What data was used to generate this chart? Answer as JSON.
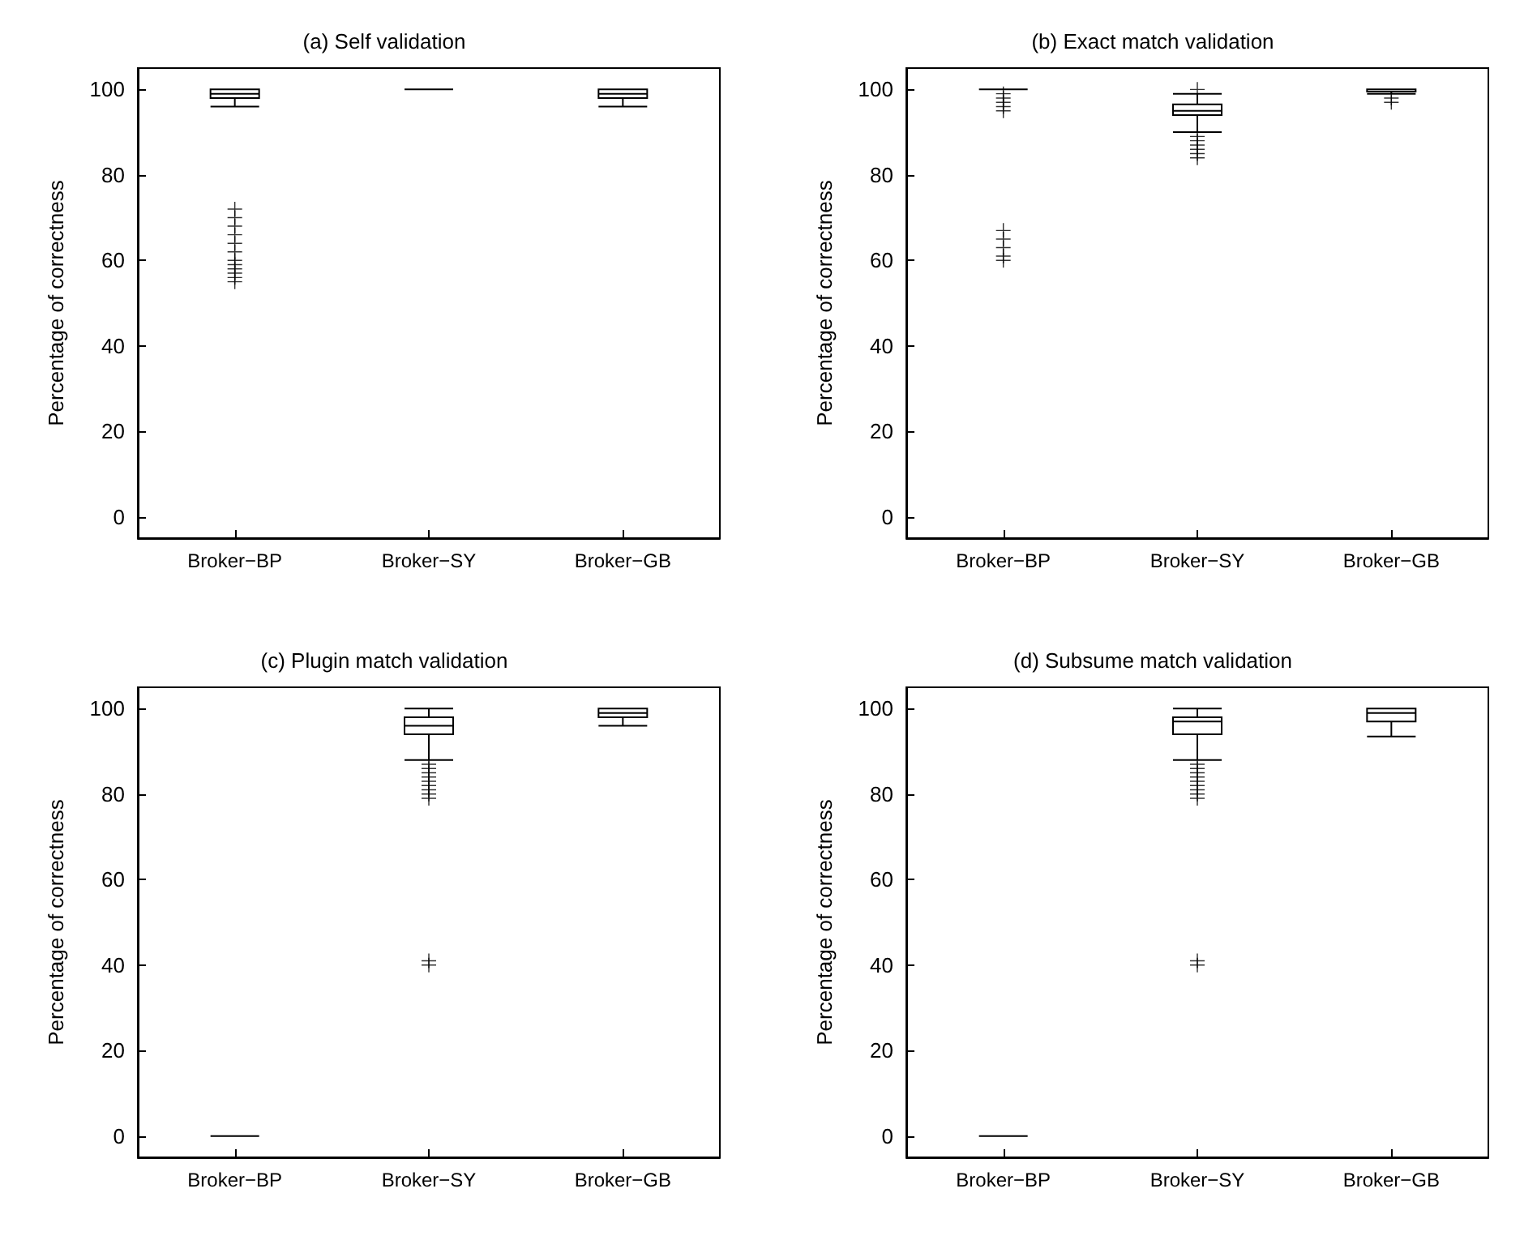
{
  "chart_data": [
    {
      "type": "box",
      "title": "(a) Self validation",
      "ylabel": "Percentage of correctness",
      "categories": [
        "Broker−BP",
        "Broker−SY",
        "Broker−GB"
      ],
      "color": "#000000",
      "marker": "cross",
      "grid": false,
      "ylim": [
        -5,
        105
      ],
      "yticks": [
        0,
        20,
        40,
        60,
        80,
        100
      ],
      "boxes": [
        {
          "low": 96,
          "q1": 98,
          "median": 99,
          "q3": 100,
          "high": 100,
          "outliers": [
            72,
            70,
            68,
            66,
            64,
            62,
            60,
            59,
            58,
            57,
            56,
            55
          ]
        },
        {
          "low": 100,
          "q1": 100,
          "median": 100,
          "q3": 100,
          "high": 100
        },
        {
          "low": 96,
          "q1": 98,
          "median": 99,
          "q3": 100,
          "high": 100
        }
      ]
    },
    {
      "type": "box",
      "title": "(b) Exact match validation",
      "ylabel": "Percentage of correctness",
      "categories": [
        "Broker−BP",
        "Broker−SY",
        "Broker−GB"
      ],
      "color": "#000000",
      "marker": "cross",
      "grid": false,
      "ylim": [
        -5,
        105
      ],
      "yticks": [
        0,
        20,
        40,
        60,
        80,
        100
      ],
      "boxes": [
        {
          "low": 100,
          "q1": 100,
          "median": 100,
          "q3": 100,
          "high": 100,
          "outliers": [
            99,
            98,
            97,
            96,
            95,
            67,
            65,
            63,
            61,
            60
          ]
        },
        {
          "low": 90,
          "q1": 94,
          "median": 95,
          "q3": 96.5,
          "high": 99,
          "outliers": [
            100,
            89,
            88,
            87,
            86,
            85,
            84
          ]
        },
        {
          "low": 99,
          "q1": 99.5,
          "median": 100,
          "q3": 100,
          "high": 100,
          "outliers": [
            98,
            97
          ]
        }
      ]
    },
    {
      "type": "box",
      "title": "(c) Plugin match validation",
      "ylabel": "Percentage of correctness",
      "categories": [
        "Broker−BP",
        "Broker−SY",
        "Broker−GB"
      ],
      "color": "#000000",
      "marker": "cross",
      "grid": false,
      "ylim": [
        -5,
        105
      ],
      "yticks": [
        0,
        20,
        40,
        60,
        80,
        100
      ],
      "boxes": [
        {
          "low": 0,
          "q1": 0,
          "median": 0,
          "q3": 0,
          "high": 0
        },
        {
          "low": 88,
          "q1": 94,
          "median": 96,
          "q3": 98,
          "high": 100,
          "outliers": [
            87,
            86,
            85,
            84,
            83,
            82,
            81,
            80,
            79,
            41,
            40
          ]
        },
        {
          "low": 96,
          "q1": 98,
          "median": 99,
          "q3": 100,
          "high": 100
        }
      ]
    },
    {
      "type": "box",
      "title": "(d) Subsume match validation",
      "ylabel": "Percentage of correctness",
      "categories": [
        "Broker−BP",
        "Broker−SY",
        "Broker−GB"
      ],
      "color": "#000000",
      "marker": "cross",
      "grid": false,
      "ylim": [
        -5,
        105
      ],
      "yticks": [
        0,
        20,
        40,
        60,
        80,
        100
      ],
      "boxes": [
        {
          "low": 0,
          "q1": 0,
          "median": 0,
          "q3": 0,
          "high": 0
        },
        {
          "low": 88,
          "q1": 94,
          "median": 97,
          "q3": 98,
          "high": 100,
          "outliers": [
            87,
            86,
            85,
            84,
            83,
            82,
            81,
            80,
            79,
            41,
            40
          ]
        },
        {
          "low": 93.5,
          "q1": 97,
          "median": 99,
          "q3": 100,
          "high": 100
        }
      ]
    }
  ]
}
